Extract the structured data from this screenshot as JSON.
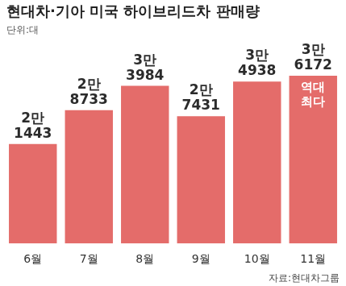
{
  "chart_data": {
    "type": "bar",
    "title": "현대차·기아 미국 하이브리드차 판매량",
    "subtitle": "단위:대",
    "source": "자료:현대차그룹",
    "categories": [
      "6월",
      "7월",
      "8월",
      "9월",
      "10월",
      "11월"
    ],
    "values": [
      21443,
      28733,
      33984,
      27431,
      34938,
      36172
    ],
    "value_labels": [
      "2만 1443",
      "2만 8733",
      "3만 3984",
      "2만 7431",
      "3만 4938",
      "3만 6172"
    ],
    "data_labels": true,
    "annotation": {
      "category": "11월",
      "text": "역대 최다"
    },
    "color": "#e46c6a",
    "ylim": [
      0,
      40000
    ],
    "grid": false,
    "tick_labels": "x",
    "legend": "none"
  }
}
